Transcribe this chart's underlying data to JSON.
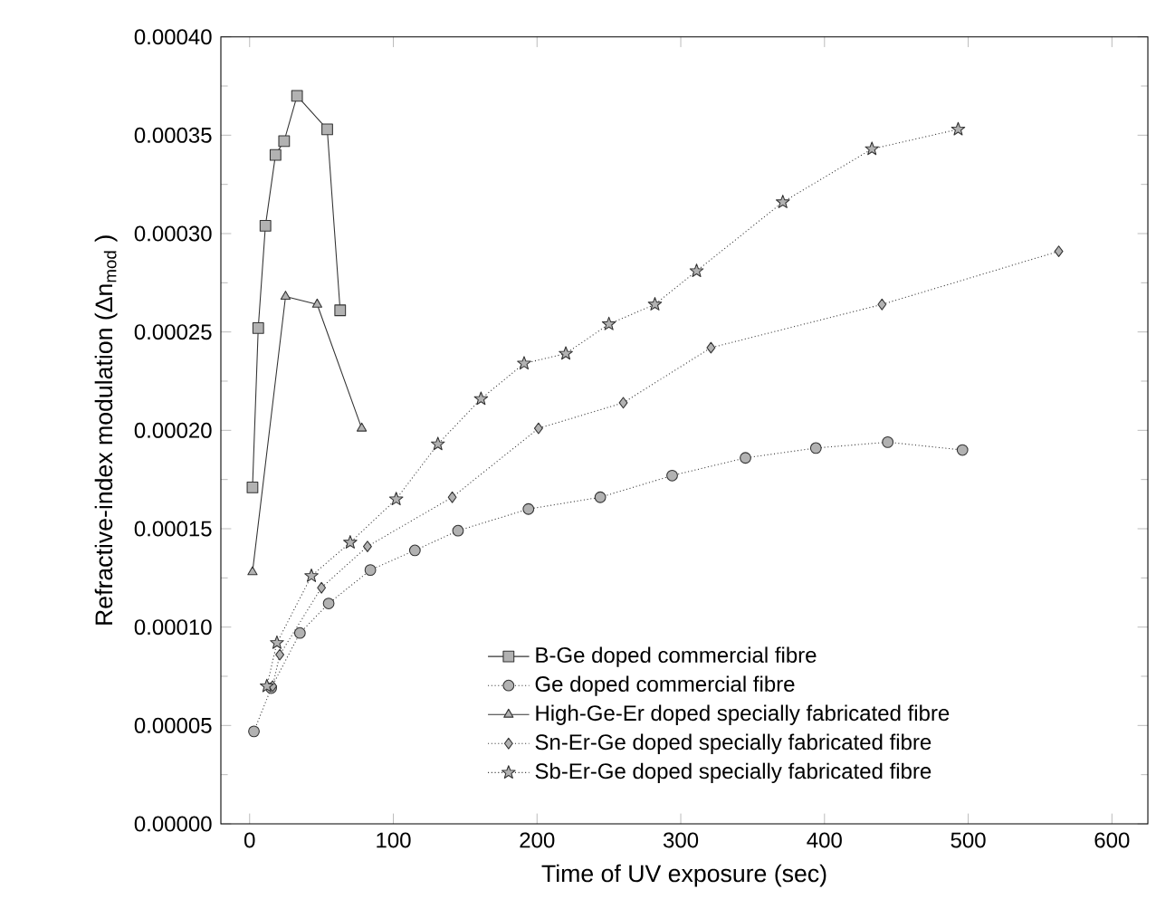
{
  "chart_data": {
    "type": "line",
    "xlabel": "Time of UV exposure (sec)",
    "ylabel": "Refractive-index modulation (Δn$_{mod}$ )",
    "xlim": [
      -20,
      625
    ],
    "ylim": [
      0,
      0.0004
    ],
    "xticks": [
      0,
      100,
      200,
      300,
      400,
      500,
      600
    ],
    "yticks": [
      {
        "value": 0,
        "label": "0.00000"
      },
      {
        "value": 5e-05,
        "label": "0.00005"
      },
      {
        "value": 0.0001,
        "label": "0.00010"
      },
      {
        "value": 0.00015,
        "label": "0.00015"
      },
      {
        "value": 0.0002,
        "label": "0.00020"
      },
      {
        "value": 0.00025,
        "label": "0.00025"
      },
      {
        "value": 0.0003,
        "label": "0.00030"
      },
      {
        "value": 0.00035,
        "label": "0.00035"
      },
      {
        "value": 0.0004,
        "label": "0.00040"
      }
    ],
    "grid": false,
    "legend": "bottom right",
    "series": [
      {
        "name": "B-Ge doped commercial fibre",
        "color": "#333333",
        "marker": "square",
        "line_style": "solid",
        "x": [
          2,
          6,
          11,
          18,
          24,
          33,
          54,
          63
        ],
        "values": [
          0.000171,
          0.000252,
          0.000304,
          0.00034,
          0.000347,
          0.00037,
          0.000353,
          0.000261
        ]
      },
      {
        "name": "Ge doped commercial fibre",
        "color": "#333333",
        "marker": "circle",
        "line_style": "dotted",
        "x": [
          3,
          15,
          35,
          55,
          84,
          115,
          145,
          194,
          244,
          294,
          345,
          394,
          444,
          496
        ],
        "values": [
          4.7e-05,
          6.9e-05,
          9.7e-05,
          0.000112,
          0.000129,
          0.000139,
          0.000149,
          0.00016,
          0.000166,
          0.000177,
          0.000186,
          0.000191,
          0.000194,
          0.00019
        ]
      },
      {
        "name": "High-Ge-Er doped specially fabricated fibre",
        "color": "#333333",
        "marker": "triangle",
        "line_style": "solid",
        "x": [
          2,
          25,
          47,
          78
        ],
        "values": [
          0.000128,
          0.000268,
          0.000264,
          0.000201
        ]
      },
      {
        "name": "Sn-Er-Ge doped specially fabricated fibre",
        "color": "#333333",
        "marker": "diamond",
        "line_style": "dotted",
        "x": [
          16,
          21,
          50,
          82,
          141,
          201,
          260,
          321,
          440,
          563
        ],
        "values": [
          7e-05,
          8.6e-05,
          0.00012,
          0.000141,
          0.000166,
          0.000201,
          0.000214,
          0.000242,
          0.000264,
          0.000291
        ]
      },
      {
        "name": "Sb-Er-Ge doped specially fabricated fibre",
        "color": "#333333",
        "marker": "star",
        "line_style": "dotted",
        "x": [
          12,
          19,
          43,
          70,
          102,
          131,
          161,
          191,
          220,
          250,
          282,
          311,
          371,
          433,
          493
        ],
        "values": [
          7e-05,
          9.2e-05,
          0.000126,
          0.000143,
          0.000165,
          0.000193,
          0.000216,
          0.000234,
          0.000239,
          0.000254,
          0.000264,
          0.000281,
          0.000316,
          0.000343,
          0.000353
        ]
      }
    ]
  }
}
